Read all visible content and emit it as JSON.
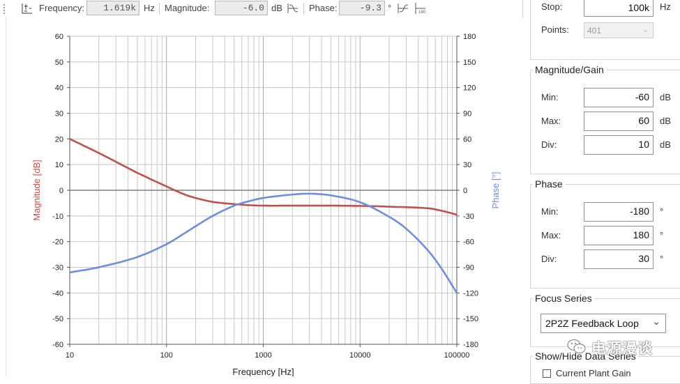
{
  "toolbar": {
    "frequency_label": "Frequency:",
    "frequency_value": "1.619k",
    "frequency_unit": "Hz",
    "magnitude_label": "Magnitude:",
    "magnitude_value": "-6.0",
    "magnitude_unit": "dB",
    "phase_label": "Phase:",
    "phase_value": "-9.3",
    "phase_unit": "°"
  },
  "panel": {
    "stop_label": "Stop:",
    "stop_value": "100k",
    "stop_unit": "Hz",
    "points_label": "Points:",
    "points_value": "401",
    "magnitude_title": "Magnitude/Gain",
    "mag_min_label": "Min:",
    "mag_min_value": "-60",
    "mag_max_label": "Max:",
    "mag_max_value": "60",
    "mag_div_label": "Div:",
    "mag_div_value": "10",
    "mag_unit": "dB",
    "phase_title": "Phase",
    "ph_min_label": "Min:",
    "ph_min_value": "-180",
    "ph_max_label": "Max:",
    "ph_max_value": "180",
    "ph_div_label": "Div:",
    "ph_div_value": "30",
    "ph_unit": "°",
    "focus_title": "Focus Series",
    "focus_value": "2P2Z Feedback Loop",
    "showhide_title": "Show/Hide Data Series",
    "current_plant_label": "Current Plant Gain"
  },
  "watermark": "电源漫谈",
  "colors": {
    "magnitude": "#c0504d",
    "phase": "#6c8ee0",
    "grid": "#c8c8c8",
    "zero_line": "#808080"
  },
  "chart_data": {
    "type": "line",
    "xlabel": "Frequency [Hz]",
    "ylabel": "Magnitude [dB]",
    "y2label": "Phase [°]",
    "xscale": "log",
    "xlim": [
      10,
      100000
    ],
    "ylim": [
      -60,
      60
    ],
    "y2lim": [
      -180,
      180
    ],
    "x_ticks": [
      "10",
      "100",
      "1000",
      "10000",
      "100000"
    ],
    "y_ticks": [
      "60",
      "50",
      "40",
      "30",
      "20",
      "10",
      "0",
      "-10",
      "-20",
      "-30",
      "-40",
      "-50",
      "-60"
    ],
    "y2_ticks": [
      "180",
      "150",
      "120",
      "90",
      "60",
      "30",
      "0",
      "-30",
      "-60",
      "-90",
      "-120",
      "-150",
      "-180"
    ],
    "grid": true,
    "series": [
      {
        "name": "Magnitude",
        "axis": "left",
        "x": [
          10,
          20,
          50,
          100,
          150,
          200,
          300,
          500,
          700,
          1000,
          2000,
          5000,
          10000,
          20000,
          50000,
          70000,
          100000
        ],
        "y": [
          20,
          14.5,
          6.8,
          1.5,
          -1.5,
          -3.0,
          -4.5,
          -5.4,
          -5.8,
          -6.0,
          -6.0,
          -6.0,
          -6.1,
          -6.4,
          -7.0,
          -8.0,
          -9.5
        ]
      },
      {
        "name": "Phase",
        "axis": "right",
        "x": [
          10,
          20,
          50,
          100,
          150,
          200,
          300,
          500,
          700,
          1000,
          2000,
          3000,
          5000,
          10000,
          20000,
          30000,
          50000,
          70000,
          100000
        ],
        "y": [
          -96,
          -90,
          -78,
          -63,
          -51,
          -42,
          -30,
          -18,
          -13,
          -9,
          -5,
          -4,
          -6,
          -14,
          -31,
          -45,
          -70,
          -92,
          -120
        ]
      }
    ]
  }
}
